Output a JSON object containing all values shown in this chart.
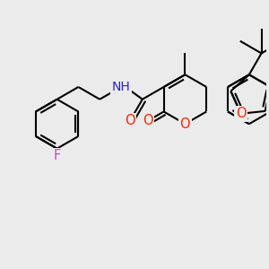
{
  "bg_color": "#ebebeb",
  "bond_color": "#000000",
  "bond_width": 1.5,
  "figsize": [
    3.0,
    3.0
  ],
  "dpi": 100,
  "xlim": [
    0,
    300
  ],
  "ylim": [
    0,
    300
  ]
}
